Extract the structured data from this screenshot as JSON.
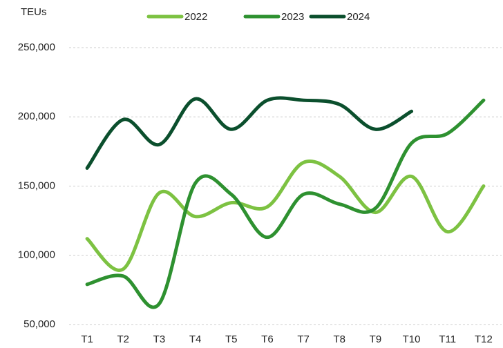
{
  "chart_data": {
    "type": "line",
    "y_label": "TEUs",
    "categories": [
      "T1",
      "T2",
      "T3",
      "T4",
      "T5",
      "T6",
      "T7",
      "T8",
      "T9",
      "T10",
      "T11",
      "T12"
    ],
    "series": [
      {
        "name": "2022",
        "color": "#7dc242",
        "values": [
          112000,
          90000,
          145000,
          128000,
          138000,
          135000,
          167000,
          157000,
          131000,
          157000,
          117000,
          150000
        ]
      },
      {
        "name": "2023",
        "color": "#2e9130",
        "values": [
          79000,
          85000,
          65000,
          152000,
          144000,
          113000,
          144000,
          137000,
          134000,
          181000,
          188000,
          212000
        ]
      },
      {
        "name": "2024",
        "color": "#0b4f2d",
        "values": [
          163000,
          198000,
          180000,
          213000,
          191000,
          212000,
          212000,
          209000,
          191000,
          204000,
          null,
          null
        ]
      }
    ],
    "ylim": [
      50000,
      250000
    ],
    "yticks": [
      {
        "value": 50000,
        "label": "50,000"
      },
      {
        "value": 100000,
        "label": "100,000"
      },
      {
        "value": 150000,
        "label": "150,000"
      },
      {
        "value": 200000,
        "label": "200,000"
      },
      {
        "value": 250000,
        "label": "250,000"
      }
    ],
    "grid": true,
    "legend": "top"
  }
}
